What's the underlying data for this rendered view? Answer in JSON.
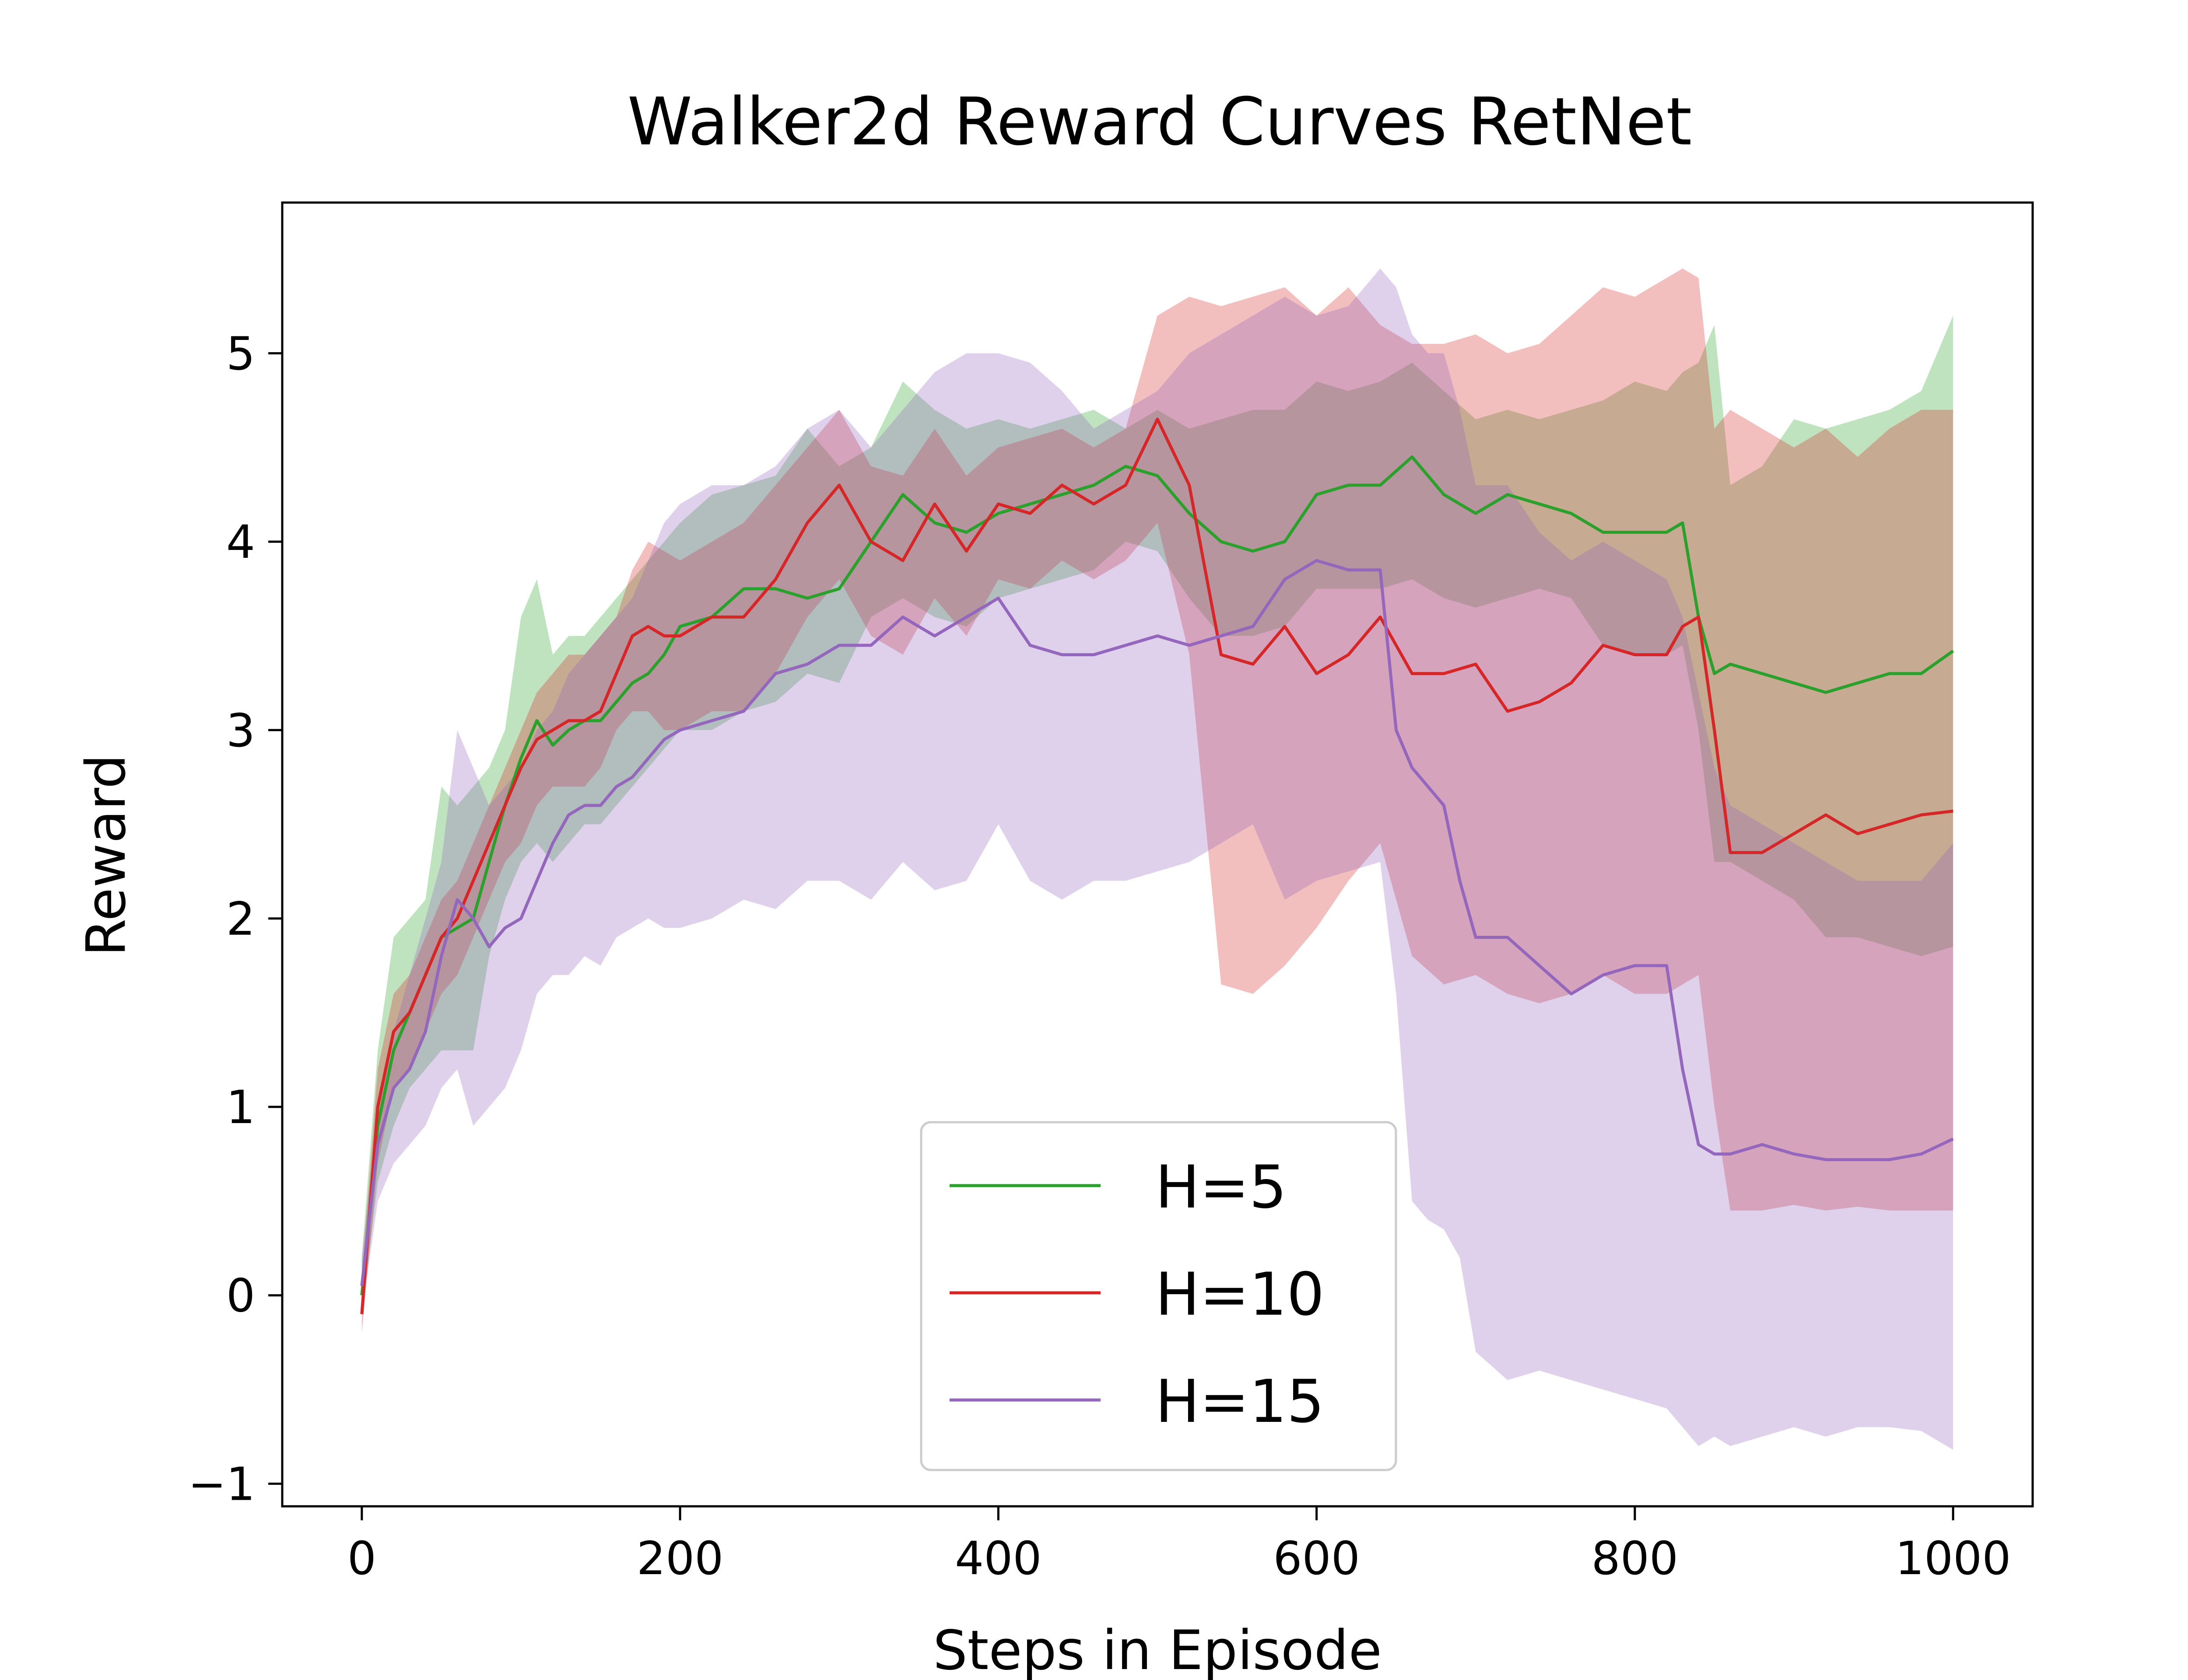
{
  "chart_data": {
    "type": "line",
    "title": "Walker2d Reward Curves RetNet",
    "xlabel": "Steps in Episode",
    "ylabel": "Reward",
    "xlim": [
      -50,
      1050
    ],
    "ylim": [
      -1.12,
      5.8
    ],
    "xticks": [
      0,
      200,
      400,
      600,
      800,
      1000
    ],
    "yticks": [
      -1,
      0,
      1,
      2,
      3,
      4,
      5
    ],
    "xtick_labels": [
      "0",
      "200",
      "400",
      "600",
      "800",
      "1000"
    ],
    "ytick_labels": [
      "−1",
      "0",
      "1",
      "2",
      "3",
      "4",
      "5"
    ],
    "grid": false,
    "legend_position": "lower-center",
    "series": [
      {
        "name": "H=5",
        "color": "#2ca02c",
        "x": [
          0,
          10,
          20,
          30,
          40,
          50,
          60,
          70,
          80,
          90,
          100,
          110,
          120,
          130,
          140,
          150,
          160,
          170,
          180,
          190,
          200,
          220,
          240,
          260,
          280,
          300,
          320,
          340,
          360,
          380,
          400,
          420,
          440,
          460,
          480,
          500,
          520,
          540,
          560,
          580,
          600,
          620,
          640,
          660,
          680,
          700,
          720,
          740,
          760,
          780,
          800,
          820,
          830,
          840,
          850,
          860,
          880,
          900,
          920,
          940,
          960,
          980,
          1000
        ],
        "values": [
          0.0,
          0.9,
          1.3,
          1.5,
          1.7,
          1.9,
          1.95,
          2.0,
          2.3,
          2.6,
          2.85,
          3.05,
          2.92,
          3.0,
          3.05,
          3.05,
          3.15,
          3.25,
          3.3,
          3.4,
          3.55,
          3.6,
          3.75,
          3.75,
          3.7,
          3.75,
          4.0,
          4.25,
          4.1,
          4.05,
          4.15,
          4.2,
          4.25,
          4.3,
          4.4,
          4.35,
          4.15,
          4.0,
          3.95,
          4.0,
          4.25,
          4.3,
          4.3,
          4.45,
          4.25,
          4.15,
          4.25,
          4.2,
          4.15,
          4.05,
          4.05,
          4.05,
          4.1,
          3.6,
          3.3,
          3.35,
          3.3,
          3.25,
          3.2,
          3.25,
          3.3,
          3.3,
          3.42
        ],
        "upper": [
          0.2,
          1.3,
          1.9,
          2.0,
          2.1,
          2.7,
          2.6,
          2.7,
          2.8,
          3.0,
          3.6,
          3.8,
          3.4,
          3.5,
          3.5,
          3.6,
          3.7,
          3.8,
          3.9,
          4.0,
          4.1,
          4.25,
          4.3,
          4.35,
          4.6,
          4.4,
          4.5,
          4.85,
          4.7,
          4.6,
          4.65,
          4.6,
          4.65,
          4.7,
          4.6,
          4.7,
          4.6,
          4.65,
          4.7,
          4.7,
          4.85,
          4.8,
          4.85,
          4.95,
          4.8,
          4.65,
          4.7,
          4.65,
          4.7,
          4.75,
          4.85,
          4.8,
          4.9,
          4.95,
          5.15,
          4.3,
          4.4,
          4.65,
          4.6,
          4.65,
          4.7,
          4.8,
          5.2
        ],
        "lower": [
          -0.1,
          0.6,
          0.9,
          1.1,
          1.2,
          1.3,
          1.3,
          1.3,
          1.8,
          2.1,
          2.3,
          2.4,
          2.3,
          2.4,
          2.5,
          2.5,
          2.6,
          2.7,
          2.8,
          2.9,
          3.0,
          3.0,
          3.1,
          3.15,
          3.3,
          3.25,
          3.6,
          3.7,
          3.6,
          3.55,
          3.7,
          3.75,
          3.8,
          3.85,
          4.0,
          3.95,
          3.7,
          3.5,
          3.5,
          3.55,
          3.75,
          3.75,
          3.75,
          3.8,
          3.7,
          3.65,
          3.7,
          3.75,
          3.7,
          3.45,
          3.4,
          3.4,
          3.45,
          3.0,
          2.3,
          2.3,
          2.2,
          2.1,
          1.9,
          1.9,
          1.85,
          1.8,
          1.85
        ]
      },
      {
        "name": "H=10",
        "color": "#d62728",
        "x": [
          0,
          10,
          20,
          30,
          40,
          50,
          60,
          70,
          80,
          90,
          100,
          110,
          120,
          130,
          140,
          150,
          160,
          170,
          180,
          190,
          200,
          220,
          240,
          260,
          280,
          300,
          320,
          340,
          360,
          380,
          400,
          420,
          440,
          460,
          480,
          500,
          520,
          540,
          560,
          580,
          600,
          620,
          640,
          660,
          680,
          700,
          720,
          740,
          760,
          780,
          800,
          820,
          830,
          840,
          850,
          860,
          880,
          900,
          920,
          940,
          960,
          980,
          1000
        ],
        "values": [
          -0.1,
          1.0,
          1.4,
          1.5,
          1.7,
          1.9,
          2.0,
          2.2,
          2.4,
          2.6,
          2.8,
          2.95,
          3.0,
          3.05,
          3.05,
          3.1,
          3.3,
          3.5,
          3.55,
          3.5,
          3.5,
          3.6,
          3.6,
          3.8,
          4.1,
          4.3,
          4.0,
          3.9,
          4.2,
          3.95,
          4.2,
          4.15,
          4.3,
          4.2,
          4.3,
          4.65,
          4.3,
          3.4,
          3.35,
          3.55,
          3.3,
          3.4,
          3.6,
          3.3,
          3.3,
          3.35,
          3.1,
          3.15,
          3.25,
          3.45,
          3.4,
          3.4,
          3.55,
          3.6,
          3.0,
          2.35,
          2.35,
          2.45,
          2.55,
          2.45,
          2.5,
          2.55,
          2.57
        ],
        "upper": [
          0.1,
          1.2,
          1.6,
          1.7,
          1.9,
          2.1,
          2.2,
          2.4,
          2.6,
          2.8,
          3.0,
          3.2,
          3.3,
          3.4,
          3.4,
          3.5,
          3.6,
          3.85,
          4.0,
          3.95,
          3.9,
          4.0,
          4.1,
          4.3,
          4.5,
          4.7,
          4.4,
          4.35,
          4.6,
          4.35,
          4.5,
          4.55,
          4.6,
          4.5,
          4.6,
          5.2,
          5.3,
          5.25,
          5.3,
          5.35,
          5.2,
          5.35,
          5.15,
          5.05,
          5.05,
          5.1,
          5.0,
          5.05,
          5.2,
          5.35,
          5.3,
          5.4,
          5.45,
          5.4,
          4.6,
          4.7,
          4.6,
          4.5,
          4.6,
          4.45,
          4.6,
          4.7,
          4.7
        ],
        "lower": [
          -0.2,
          0.7,
          1.1,
          1.2,
          1.4,
          1.6,
          1.7,
          1.9,
          2.1,
          2.3,
          2.4,
          2.6,
          2.7,
          2.7,
          2.7,
          2.8,
          3.0,
          3.1,
          3.1,
          3.0,
          3.0,
          3.1,
          3.1,
          3.3,
          3.6,
          3.8,
          3.5,
          3.4,
          3.7,
          3.5,
          3.8,
          3.75,
          3.9,
          3.8,
          3.9,
          4.1,
          3.4,
          1.65,
          1.6,
          1.75,
          1.95,
          2.2,
          2.4,
          1.8,
          1.65,
          1.7,
          1.6,
          1.55,
          1.6,
          1.7,
          1.6,
          1.6,
          1.65,
          1.7,
          1.0,
          0.45,
          0.45,
          0.48,
          0.45,
          0.47,
          0.45,
          0.45,
          0.45
        ]
      },
      {
        "name": "H=15",
        "color": "#9467bd",
        "x": [
          0,
          10,
          20,
          30,
          40,
          50,
          60,
          70,
          80,
          90,
          100,
          110,
          120,
          130,
          140,
          150,
          160,
          170,
          180,
          190,
          200,
          220,
          240,
          260,
          280,
          300,
          320,
          340,
          360,
          380,
          400,
          420,
          440,
          460,
          480,
          500,
          520,
          540,
          560,
          580,
          600,
          620,
          640,
          650,
          660,
          670,
          680,
          690,
          700,
          720,
          740,
          760,
          780,
          800,
          820,
          830,
          840,
          850,
          860,
          880,
          900,
          920,
          940,
          960,
          980,
          1000
        ],
        "values": [
          0.05,
          0.8,
          1.1,
          1.2,
          1.4,
          1.8,
          2.1,
          2.0,
          1.85,
          1.95,
          2.0,
          2.2,
          2.4,
          2.55,
          2.6,
          2.6,
          2.7,
          2.75,
          2.85,
          2.95,
          3.0,
          3.05,
          3.1,
          3.3,
          3.35,
          3.45,
          3.45,
          3.6,
          3.5,
          3.6,
          3.7,
          3.45,
          3.4,
          3.4,
          3.45,
          3.5,
          3.45,
          3.5,
          3.55,
          3.8,
          3.9,
          3.85,
          3.85,
          3.0,
          2.8,
          2.7,
          2.6,
          2.2,
          1.9,
          1.9,
          1.75,
          1.6,
          1.7,
          1.75,
          1.75,
          1.2,
          0.8,
          0.75,
          0.75,
          0.8,
          0.75,
          0.72,
          0.72,
          0.72,
          0.75,
          0.83
        ],
        "upper": [
          0.2,
          1.0,
          1.4,
          1.7,
          2.0,
          2.3,
          3.0,
          2.8,
          2.6,
          2.7,
          2.8,
          3.0,
          3.1,
          3.3,
          3.4,
          3.5,
          3.6,
          3.7,
          3.9,
          4.1,
          4.2,
          4.3,
          4.3,
          4.4,
          4.6,
          4.7,
          4.5,
          4.7,
          4.9,
          5.0,
          5.0,
          4.95,
          4.8,
          4.6,
          4.7,
          4.8,
          5.0,
          5.1,
          5.2,
          5.3,
          5.2,
          5.25,
          5.45,
          5.35,
          5.1,
          5.0,
          5.0,
          4.7,
          4.3,
          4.3,
          4.05,
          3.9,
          4.0,
          3.9,
          3.8,
          3.6,
          3.2,
          2.8,
          2.6,
          2.5,
          2.4,
          2.3,
          2.2,
          2.2,
          2.2,
          2.4
        ],
        "lower": [
          -0.1,
          0.5,
          0.7,
          0.8,
          0.9,
          1.1,
          1.2,
          0.9,
          1.0,
          1.1,
          1.3,
          1.6,
          1.7,
          1.7,
          1.8,
          1.75,
          1.9,
          1.95,
          2.0,
          1.95,
          1.95,
          2.0,
          2.1,
          2.05,
          2.2,
          2.2,
          2.1,
          2.3,
          2.15,
          2.2,
          2.5,
          2.2,
          2.1,
          2.2,
          2.2,
          2.25,
          2.3,
          2.4,
          2.5,
          2.1,
          2.2,
          2.25,
          2.3,
          1.6,
          0.5,
          0.4,
          0.35,
          0.2,
          -0.3,
          -0.45,
          -0.4,
          -0.45,
          -0.5,
          -0.55,
          -0.6,
          -0.7,
          -0.8,
          -0.75,
          -0.8,
          -0.75,
          -0.7,
          -0.75,
          -0.7,
          -0.7,
          -0.72,
          -0.82
        ]
      }
    ]
  }
}
